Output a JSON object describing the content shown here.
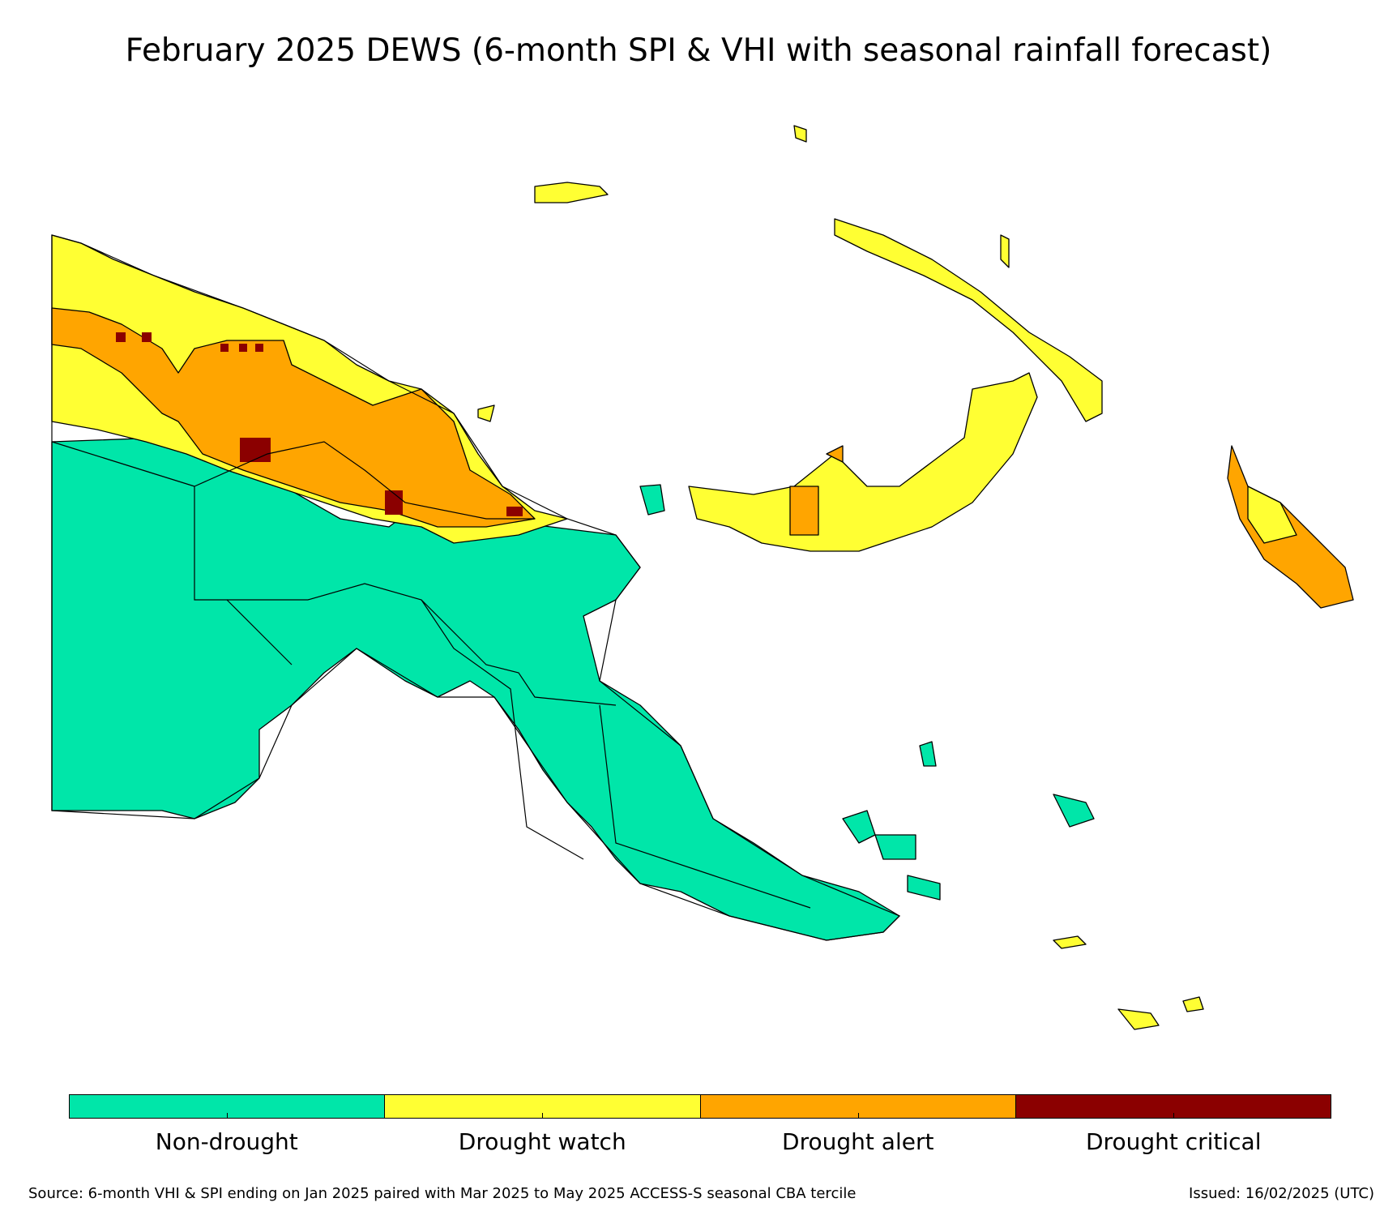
{
  "title": "February 2025 DEWS (6-month SPI & VHI with seasonal rainfall forecast)",
  "legend": {
    "categories": [
      {
        "label": "Non-drought",
        "color": "#00e6a9"
      },
      {
        "label": "Drought watch",
        "color": "#ffff33"
      },
      {
        "label": "Drought alert",
        "color": "#ffa500"
      },
      {
        "label": "Drought critical",
        "color": "#8b0000"
      }
    ]
  },
  "footer": {
    "source": "Source: 6-month VHI & SPI ending on Jan 2025 paired with Mar 2025 to May 2025 ACCESS-S seasonal CBA tercile",
    "issued": "Issued: 16/02/2025 (UTC)"
  }
}
